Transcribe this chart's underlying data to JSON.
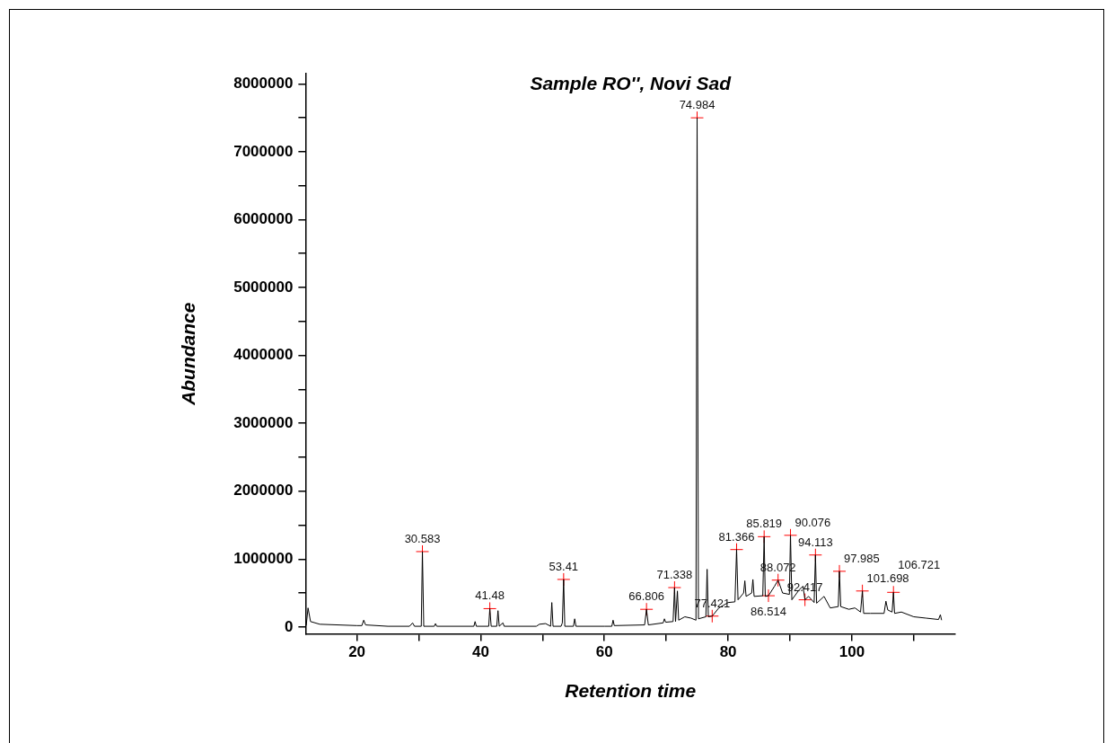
{
  "chart_data": {
    "type": "line",
    "title": "Sample RO'', Novi Sad",
    "xlabel": "Retention time",
    "ylabel": "Abundance",
    "xlim": [
      11.7,
      116.7
    ],
    "ylim": [
      -100000,
      8150000
    ],
    "xticks": [
      20,
      {
        "value": 30,
        "label": null
      },
      40,
      {
        "value": 50,
        "label": null
      },
      60,
      {
        "value": 70,
        "label": null
      },
      80,
      {
        "value": 90,
        "label": null
      },
      100,
      {
        "value": 110,
        "label": null
      }
    ],
    "yticks": [
      0,
      {
        "value": 500000,
        "label": null
      },
      1000000,
      {
        "value": 1500000,
        "label": null
      },
      2000000,
      {
        "value": 2500000,
        "label": null
      },
      3000000,
      {
        "value": 3500000,
        "label": null
      },
      4000000,
      {
        "value": 4500000,
        "label": null
      },
      5000000,
      {
        "value": 5500000,
        "label": null
      },
      6000000,
      {
        "value": 6500000,
        "label": null
      },
      7000000,
      {
        "value": 7500000,
        "label": null
      },
      8000000
    ],
    "grid": false,
    "legend": false,
    "series": [
      {
        "type": "line",
        "color": "#000000",
        "marker": "none",
        "x": [
          11.8,
          12.1,
          12.5,
          14,
          20,
          20.8,
          21.1,
          21.4,
          25,
          28.5,
          29,
          29.3,
          30.4,
          30.583,
          30.8,
          32.5,
          32.7,
          32.9,
          38.9,
          39.1,
          39.3,
          41.3,
          41.48,
          41.7,
          42.6,
          42.8,
          43,
          43.6,
          43.8,
          49,
          49.5,
          50.5,
          51.3,
          51.5,
          51.7,
          53,
          53.2,
          53.41,
          53.6,
          55,
          55.2,
          55.4,
          60,
          61.2,
          61.4,
          61.6,
          66.5,
          66.806,
          67.1,
          69.5,
          69.7,
          69.9,
          71.1,
          71.338,
          71.5,
          71.8,
          72,
          73,
          74,
          74.8,
          74.984,
          75.2,
          76.4,
          76.6,
          76.8,
          77.421,
          78.5,
          80,
          81.1,
          81.366,
          81.6,
          82.5,
          82.7,
          82.9,
          83.8,
          84,
          84.2,
          85.6,
          85.819,
          86,
          86.514,
          87.5,
          88.072,
          88.8,
          89.9,
          90.076,
          90.3,
          91.5,
          92.1,
          92.417,
          93,
          93.9,
          94.113,
          94.3,
          95.5,
          96.5,
          97.8,
          97.985,
          98.2,
          99.5,
          100.5,
          101.4,
          101.698,
          101.9,
          103,
          105.2,
          105.5,
          105.8,
          106.5,
          106.721,
          106.9,
          108,
          110,
          112,
          114,
          114.3,
          114.5
        ],
        "values": [
          20000,
          280000,
          80000,
          40000,
          20000,
          20000,
          100000,
          30000,
          10000,
          10000,
          60000,
          10000,
          10000,
          1110000,
          10000,
          10000,
          50000,
          10000,
          10000,
          80000,
          10000,
          10000,
          270000,
          10000,
          10000,
          240000,
          10000,
          60000,
          10000,
          10000,
          40000,
          50000,
          10000,
          360000,
          10000,
          10000,
          60000,
          700000,
          10000,
          10000,
          120000,
          10000,
          10000,
          10000,
          100000,
          20000,
          30000,
          260000,
          30000,
          60000,
          120000,
          70000,
          80000,
          580000,
          80000,
          530000,
          100000,
          150000,
          130000,
          100000,
          7500000,
          120000,
          150000,
          850000,
          150000,
          160000,
          280000,
          360000,
          370000,
          1140000,
          400000,
          500000,
          680000,
          450000,
          500000,
          700000,
          450000,
          460000,
          1330000,
          450000,
          460000,
          600000,
          690000,
          500000,
          480000,
          1350000,
          400000,
          550000,
          600000,
          400000,
          450000,
          360000,
          1060000,
          350000,
          450000,
          280000,
          300000,
          820000,
          300000,
          260000,
          280000,
          220000,
          530000,
          200000,
          200000,
          200000,
          380000,
          250000,
          220000,
          510000,
          200000,
          220000,
          150000,
          130000,
          110000,
          180000,
          100000
        ]
      },
      {
        "type": "scatter",
        "color": "#ff0000",
        "marker": "cross",
        "x": [
          30.583,
          41.48,
          53.41,
          66.806,
          71.338,
          74.984,
          77.421,
          81.366,
          85.819,
          86.514,
          88.072,
          90.076,
          92.417,
          94.113,
          97.985,
          101.698,
          106.721
        ],
        "values": [
          1110000,
          270000,
          700000,
          260000,
          580000,
          7500000,
          160000,
          1140000,
          1330000,
          460000,
          690000,
          1350000,
          400000,
          1060000,
          820000,
          530000,
          510000
        ]
      }
    ],
    "annotations": [
      {
        "text": "30.583",
        "x": 30.583,
        "y": 1110000
      },
      {
        "text": "41.48",
        "x": 41.48,
        "y": 270000
      },
      {
        "text": "53.41",
        "x": 53.41,
        "y": 700000
      },
      {
        "text": "66.806",
        "x": 66.806,
        "y": 260000
      },
      {
        "text": "71.338",
        "x": 71.338,
        "y": 580000
      },
      {
        "text": "74.984",
        "x": 74.984,
        "y": 7500000
      },
      {
        "text": "77.421",
        "x": 77.421,
        "y": 160000
      },
      {
        "text": "81.366",
        "x": 81.366,
        "y": 1140000
      },
      {
        "text": "85.819",
        "x": 85.819,
        "y": 1330000
      },
      {
        "text": "86.514",
        "x": 86.514,
        "y": 460000
      },
      {
        "text": "88.072",
        "x": 88.072,
        "y": 690000
      },
      {
        "text": "90.076",
        "x": 90.076,
        "y": 1350000
      },
      {
        "text": "92.417",
        "x": 92.417,
        "y": 400000
      },
      {
        "text": "94.113",
        "x": 94.113,
        "y": 1060000
      },
      {
        "text": "97.985",
        "x": 97.985,
        "y": 820000
      },
      {
        "text": "101.698",
        "x": 101.698,
        "y": 530000
      },
      {
        "text": "106.721",
        "x": 106.721,
        "y": 510000
      }
    ]
  }
}
